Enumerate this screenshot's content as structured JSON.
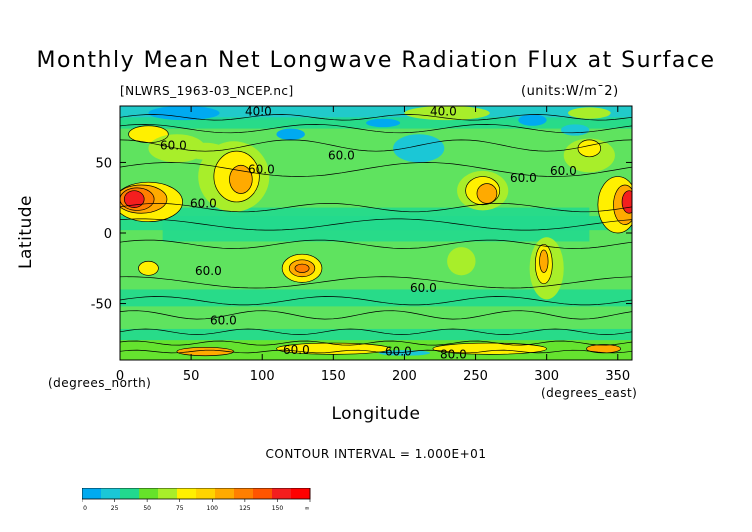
{
  "title": "Monthly Mean Net Longwave Radiation Flux at Surface",
  "subtitle_file": "[NLWRS_1963-03_NCEP.nc]",
  "subtitle_units": "(units:W/m¯2)",
  "xlabel": "Longitude",
  "ylabel": "Latitude",
  "x_unit": "(degrees_east)",
  "y_unit": "(degrees_north)",
  "contour_interval": "CONTOUR INTERVAL = 1.000E+01",
  "chart_data": {
    "type": "heatmap",
    "title": "Monthly Mean Net Longwave Radiation Flux at Surface",
    "xlabel": "Longitude",
    "ylabel": "Latitude",
    "xlim": [
      0,
      360
    ],
    "ylim": [
      -90,
      90
    ],
    "x_ticks": [
      "0",
      "50",
      "100",
      "150",
      "200",
      "250",
      "300",
      "350"
    ],
    "y_ticks": [
      "50",
      "0",
      "-50"
    ],
    "contour_labels": [
      "40.0",
      "40.0",
      "60.0",
      "60.0",
      "60.0",
      "60.0",
      "60.0",
      "60.0",
      "60.0",
      "60.0",
      "60.0",
      "60.0",
      "80.0",
      "60.0"
    ],
    "colorbar": {
      "levels": [
        "0",
        "25",
        "50",
        "75",
        "100",
        "125",
        "150",
        "∞"
      ],
      "colors": [
        "#00aaf0",
        "#1bc7d6",
        "#22d98e",
        "#66e22a",
        "#a8ee2a",
        "#fff000",
        "#ffd400",
        "#ffaa00",
        "#ff7f00",
        "#ff5500",
        "#f41e1e",
        "#ff0000"
      ]
    },
    "background_color": "#5fe35f"
  }
}
